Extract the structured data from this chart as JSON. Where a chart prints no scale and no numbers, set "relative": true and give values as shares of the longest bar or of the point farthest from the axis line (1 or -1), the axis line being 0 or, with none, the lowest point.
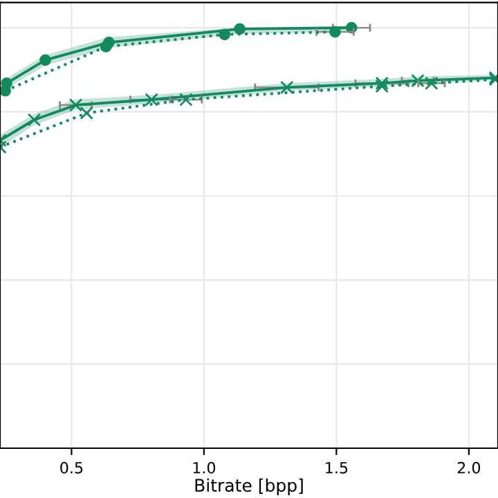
{
  "chart_data": {
    "type": "line",
    "xlabel": "Bitrate [bpp]",
    "relative": true,
    "xlim": [
      0.23,
      2.11
    ],
    "xticks": [
      0.5,
      {
        "value": 1,
        "label": "1.0"
      },
      1.5,
      {
        "value": 2,
        "label": "2.0"
      }
    ],
    "grid": true,
    "tick_labels": "x",
    "series": [
      {
        "color": "#138a5e",
        "marker": "circle",
        "line_style": "solid",
        "x": [
          0.255,
          0.401,
          0.641,
          1.135,
          1.557
        ],
        "values": [
          0.868,
          0.923,
          0.965,
          0.997,
          1.0
        ],
        "lower": [
          0.855,
          0.91,
          0.952,
          0.985,
          0.99
        ],
        "upper": [
          0.88,
          0.935,
          0.978,
          1.0,
          1.0
        ],
        "xerrors": [
          null,
          null,
          null,
          null,
          0.07
        ]
      },
      {
        "color": "#138a5e",
        "marker": "circle",
        "line_style": "dotted",
        "x": [
          0.25,
          0.63,
          1.078,
          1.495
        ],
        "values": [
          0.85,
          0.955,
          0.984,
          0.99
        ],
        "xerrors": [
          null,
          null,
          null,
          0.07
        ]
      },
      {
        "color": "#138a5e",
        "marker": "cross",
        "line_style": "solid",
        "x": [
          0.23,
          0.359,
          0.516,
          0.802,
          1.313,
          1.672,
          1.807,
          2.1
        ],
        "values": [
          0.732,
          0.781,
          0.816,
          0.829,
          0.858,
          0.868,
          0.874,
          0.881
        ],
        "lower": [
          0.715,
          0.768,
          0.805,
          0.82,
          0.85,
          0.86,
          0.865,
          0.875
        ],
        "upper": [
          0.745,
          0.795,
          0.83,
          0.84,
          0.868,
          0.878,
          0.884,
          0.888
        ],
        "xerrors": [
          null,
          null,
          0.06,
          0.08,
          0.12,
          0.1,
          0.06,
          null
        ]
      },
      {
        "color": "#138a5e",
        "marker": "cross",
        "line_style": "dotted",
        "x": [
          0.23,
          0.557,
          0.932,
          1.672,
          1.859,
          2.1
        ],
        "values": [
          0.716,
          0.797,
          0.829,
          0.861,
          0.868,
          0.877
        ],
        "xerrors": [
          null,
          null,
          0.06,
          null,
          0.05,
          null
        ]
      }
    ]
  }
}
